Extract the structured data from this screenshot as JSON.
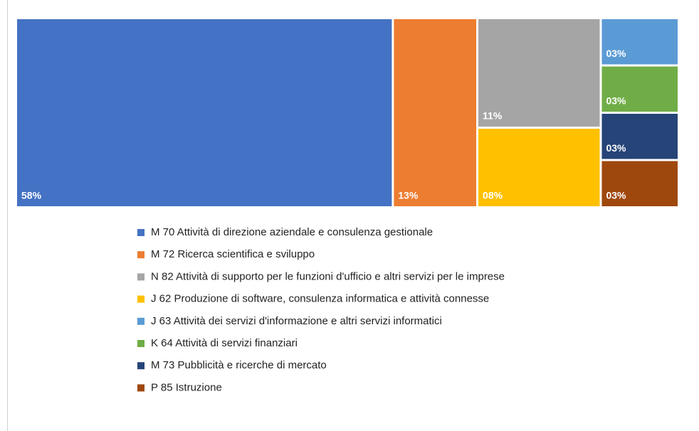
{
  "chart_data": {
    "type": "treemap",
    "categories": [
      "M 70 Attività di direzione aziendale e consulenza gestionale",
      "M 72 Ricerca scientifica e sviluppo",
      "N 82 Attività di supporto per le funzioni d'ufficio e altri servizi per le imprese",
      "J 62 Produzione di software, consulenza informatica e attività connesse",
      "J 63 Attività dei servizi d'informazione e altri servizi informatici",
      "K 64 Attività di servizi finanziari",
      "M 73 Pubblicità e ricerche di mercato",
      "P 85 Istruzione"
    ],
    "values": [
      58,
      13,
      11,
      8,
      3,
      3,
      3,
      3
    ],
    "value_labels": [
      "58%",
      "13%",
      "11%",
      "08%",
      "03%",
      "03%",
      "03%",
      "03%"
    ],
    "colors": [
      "#4472c4",
      "#ed7d31",
      "#a5a5a5",
      "#ffc000",
      "#5b9bd5",
      "#70ad47",
      "#264478",
      "#9e480e"
    ]
  }
}
